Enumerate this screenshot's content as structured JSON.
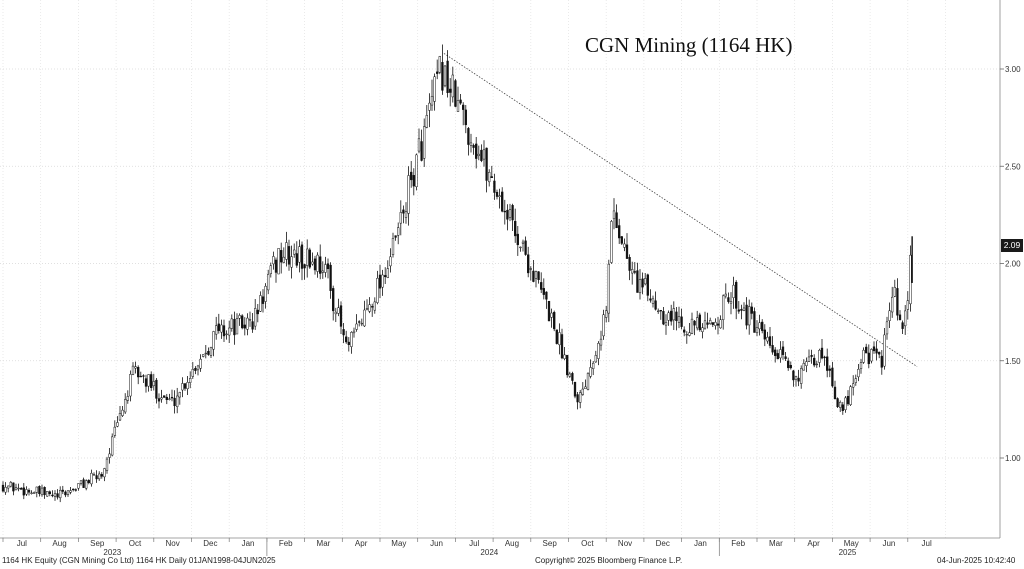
{
  "chart_data": {
    "type": "candlestick",
    "title": "CGN Mining (1164 HK)",
    "ticker": "1164 HK",
    "y_ticks": [
      "1.00",
      "1.50",
      "2.00",
      "2.50",
      "3.00"
    ],
    "ylim": [
      0.5,
      3.35
    ],
    "x_months": [
      "Jul",
      "Aug",
      "Sep",
      "Oct",
      "Nov",
      "Dec",
      "Jan",
      "Feb",
      "Mar",
      "Apr",
      "May",
      "Jun",
      "Jul",
      "Aug",
      "Sep",
      "Oct",
      "Nov",
      "Dec",
      "Jan",
      "Feb",
      "Mar",
      "Apr",
      "May",
      "Jun",
      "Jul"
    ],
    "x_years": [
      "2023",
      "2024",
      "2025"
    ],
    "grid": true,
    "last_price": "2.09",
    "key_points": [
      {
        "date": "2023-06-01",
        "price": 0.86
      },
      {
        "date": "2023-07-15",
        "price": 0.8
      },
      {
        "date": "2023-08-20",
        "price": 0.92
      },
      {
        "date": "2023-09-15",
        "price": 1.45
      },
      {
        "date": "2023-10-15",
        "price": 1.28
      },
      {
        "date": "2023-11-20",
        "price": 1.65
      },
      {
        "date": "2023-12-20",
        "price": 1.7
      },
      {
        "date": "2024-01-10",
        "price": 2.05
      },
      {
        "date": "2024-02-15",
        "price": 2.0
      },
      {
        "date": "2024-03-05",
        "price": 1.55
      },
      {
        "date": "2024-04-10",
        "price": 2.05
      },
      {
        "date": "2024-05-20",
        "price": 3.0
      },
      {
        "date": "2024-06-10",
        "price": 2.7
      },
      {
        "date": "2024-07-20",
        "price": 2.15
      },
      {
        "date": "2024-08-15",
        "price": 1.75
      },
      {
        "date": "2024-09-08",
        "price": 1.3
      },
      {
        "date": "2024-09-30",
        "price": 1.75
      },
      {
        "date": "2024-10-05",
        "price": 2.3
      },
      {
        "date": "2024-10-20",
        "price": 1.95
      },
      {
        "date": "2024-11-15",
        "price": 1.75
      },
      {
        "date": "2024-12-20",
        "price": 1.65
      },
      {
        "date": "2025-01-10",
        "price": 1.85
      },
      {
        "date": "2025-02-10",
        "price": 1.55
      },
      {
        "date": "2025-03-05",
        "price": 1.42
      },
      {
        "date": "2025-03-25",
        "price": 1.55
      },
      {
        "date": "2025-04-08",
        "price": 1.22
      },
      {
        "date": "2025-04-25",
        "price": 1.55
      },
      {
        "date": "2025-05-10",
        "price": 1.5
      },
      {
        "date": "2025-05-20",
        "price": 1.85
      },
      {
        "date": "2025-05-28",
        "price": 1.6
      },
      {
        "date": "2025-06-04",
        "price": 2.09
      }
    ],
    "trendline": [
      {
        "date": "2024-05-22",
        "price": 3.08
      },
      {
        "date": "2025-06-08",
        "price": 1.47
      }
    ]
  },
  "footer": {
    "left": "1164 HK Equity (CGN Mining Co Ltd) 1164 HK   Daily 01JAN1998-04JUN2025",
    "center": "Copyright© 2025 Bloomberg Finance L.P.",
    "right": "04-Jun-2025 10:42:40"
  }
}
